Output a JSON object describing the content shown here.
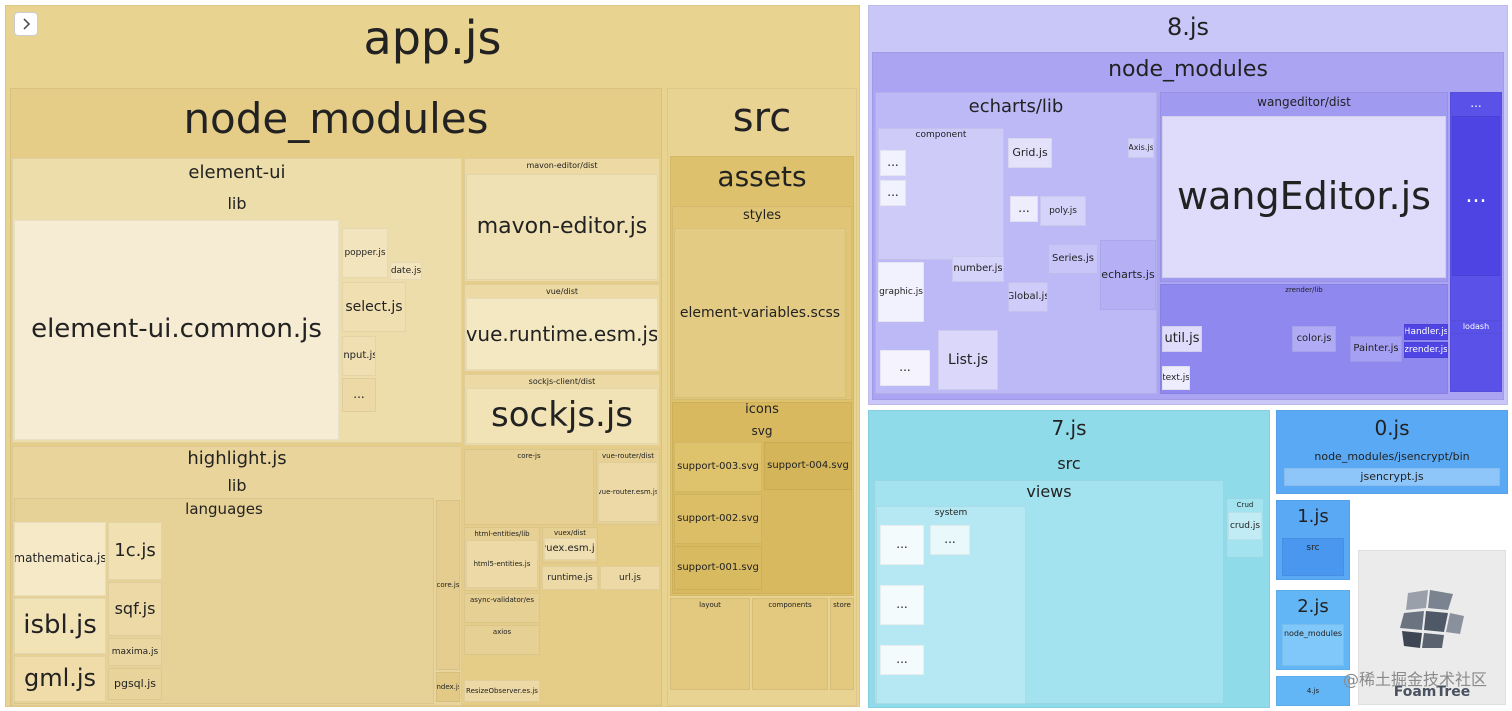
{
  "labels": [
    "app.js",
    "node_modules",
    "src",
    "element-ui",
    "lib",
    "element-ui.common.js",
    "popper.js",
    "date.js",
    "select.js",
    "input.js",
    "...",
    "mavon-editor/dist",
    "mavon-editor.js",
    "vue/dist",
    "vue.runtime.esm.js",
    "sockjs-client/dist",
    "sockjs.js",
    "highlight.js",
    "lib",
    "languages",
    "mathematica.js",
    "isbl.js",
    "gml.js",
    "1c.js",
    "sqf.js",
    "maxima.js",
    "pgsql.js",
    "core.js",
    "index.js",
    "assets",
    "styles",
    "element-variables.scss",
    "icons",
    "svg",
    "support-003.svg",
    "support-002.svg",
    "support-001.svg",
    "support-004.svg",
    "core-js",
    "vue-router/dist",
    "vue-router.esm.js",
    "html-entities/lib",
    "html5-entities.js",
    "vuex/dist",
    "vuex.esm.js",
    "runtime.js",
    "url.js",
    "async-validator/es",
    "axios",
    "ResizeObserver.es.js",
    "layout",
    "components",
    "store",
    "8.js",
    "node_modules",
    "echarts/lib",
    "wangeditor/dist",
    "wangEditor.js",
    "...",
    "...",
    "component",
    "Grid.js",
    "Axis.js",
    "poly.js",
    "Series.js",
    "echarts.js",
    "number.js",
    "graphic.js",
    "Global.js",
    "List.js",
    "zrender/lib",
    "util.js",
    "color.js",
    "Painter.js",
    "Handler.js",
    "zrender.js",
    "text.js",
    "lodash",
    "7.js",
    "src",
    "views",
    "system",
    "Crud",
    "crud.js",
    "0.js",
    "node_modules/jsencrypt/bin",
    "jsencrypt.js",
    "1.js",
    "src",
    "2.js",
    "node_modules",
    "4.js",
    "FoamTree",
    "@稀土掘金技术社区",
    "...",
    "...",
    "...",
    "...",
    "...",
    "...",
    "...",
    "..."
  ]
}
